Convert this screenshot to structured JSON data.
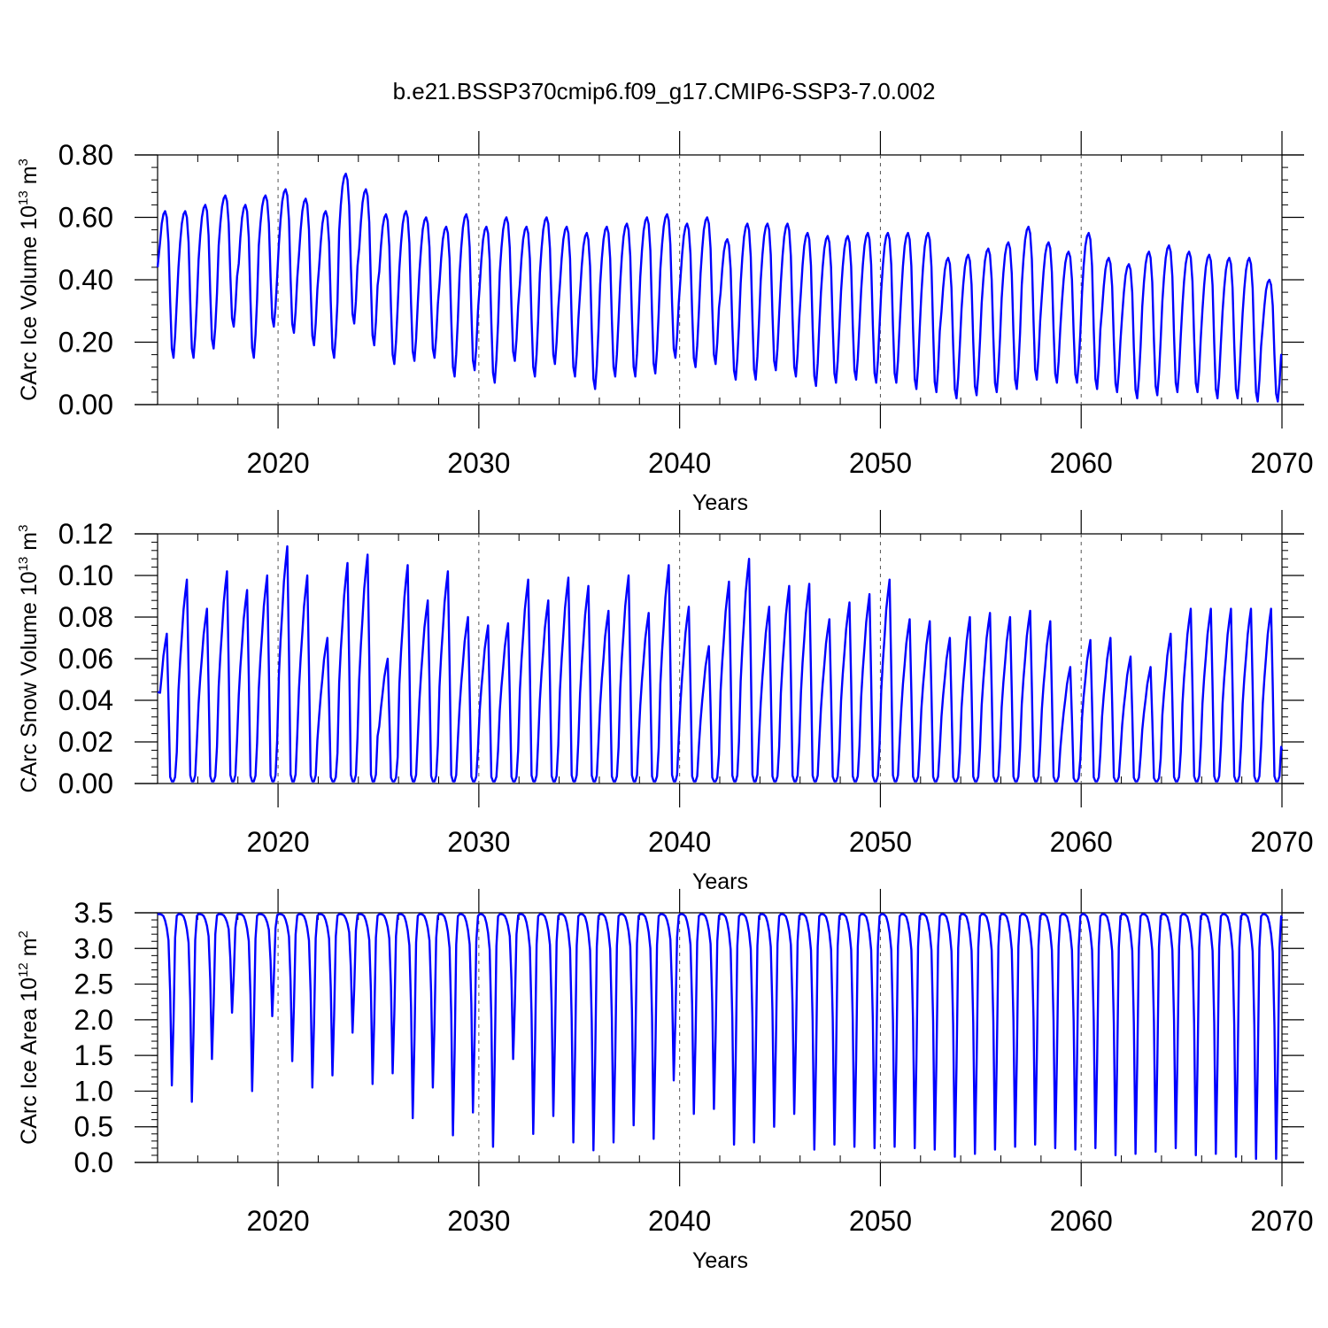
{
  "figure_title": "b.e21.BSSP370cmip6.f09_g17.CMIP6-SSP3-7.0.002",
  "colors": {
    "series": "#0000ff",
    "axes": "#000000",
    "refline": "#555555"
  },
  "chart_data": [
    {
      "type": "line",
      "ylabel": {
        "main": "CArc Ice Volume 10",
        "exp": "13",
        "unit": " m",
        "unit_exp": "3"
      },
      "xlabel": "Years",
      "xlim": [
        2014.0,
        2070.0
      ],
      "ylim": [
        0.0,
        0.8
      ],
      "x_ticks": [
        2020,
        2030,
        2040,
        2050,
        2060,
        2070
      ],
      "y_ticks": [
        "0.00",
        "0.20",
        "0.40",
        "0.60",
        "0.80"
      ],
      "y_minor_step": 0.04,
      "vertical_reference_lines": [
        2020,
        2030,
        2040,
        2050,
        2060
      ],
      "grid": false,
      "start_year": 2014,
      "series": [
        {
          "seasonal_pattern": [
            0.44,
            0.52,
            0.58,
            0.61,
            0.62,
            0.6,
            0.52,
            0.33,
            0.18,
            0.15,
            0.22,
            0.33
          ],
          "annual_max": [
            0.62,
            0.62,
            0.64,
            0.67,
            0.64,
            0.67,
            0.69,
            0.66,
            0.62,
            0.74,
            0.69,
            0.61,
            0.62,
            0.6,
            0.57,
            0.61,
            0.57,
            0.6,
            0.57,
            0.6,
            0.57,
            0.55,
            0.57,
            0.58,
            0.6,
            0.61,
            0.58,
            0.6,
            0.53,
            0.58,
            0.58,
            0.58,
            0.55,
            0.54,
            0.54,
            0.55,
            0.55,
            0.55,
            0.55,
            0.47,
            0.48,
            0.5,
            0.52,
            0.57,
            0.52,
            0.49,
            0.55,
            0.47,
            0.45,
            0.49,
            0.51,
            0.49,
            0.48,
            0.47,
            0.47,
            0.4
          ],
          "annual_min": [
            0.15,
            0.15,
            0.18,
            0.25,
            0.15,
            0.25,
            0.23,
            0.19,
            0.15,
            0.26,
            0.19,
            0.13,
            0.14,
            0.15,
            0.09,
            0.11,
            0.07,
            0.14,
            0.09,
            0.13,
            0.09,
            0.05,
            0.09,
            0.09,
            0.1,
            0.15,
            0.12,
            0.13,
            0.08,
            0.08,
            0.11,
            0.09,
            0.06,
            0.07,
            0.08,
            0.07,
            0.07,
            0.05,
            0.04,
            0.02,
            0.03,
            0.04,
            0.05,
            0.08,
            0.07,
            0.07,
            0.05,
            0.04,
            0.02,
            0.03,
            0.04,
            0.04,
            0.02,
            0.02,
            0.01,
            0.01
          ],
          "final_value": 0.16
        }
      ]
    },
    {
      "type": "line",
      "ylabel": {
        "main": "CArc Snow Volume 10",
        "exp": "13",
        "unit": " m",
        "unit_exp": "3"
      },
      "xlabel": "Years",
      "xlim": [
        2014.0,
        2070.0
      ],
      "ylim": [
        0.0,
        0.12
      ],
      "x_ticks": [
        2020,
        2030,
        2040,
        2050,
        2060,
        2070
      ],
      "y_ticks": [
        "0.00",
        "0.02",
        "0.04",
        "0.06",
        "0.08",
        "0.10",
        "0.12"
      ],
      "y_minor_step": 0.004,
      "vertical_reference_lines": [
        2020,
        2030,
        2040,
        2050,
        2060
      ],
      "grid": false,
      "start_year": 2014,
      "series": [
        {
          "seasonal_pattern": [
            0.45,
            0.6,
            0.72,
            0.85,
            0.93,
            1.0,
            0.55,
            0.03,
            0.0,
            0.0,
            0.03,
            0.2
          ],
          "annual_max": [
            0.072,
            0.098,
            0.084,
            0.102,
            0.093,
            0.1,
            0.114,
            0.1,
            0.07,
            0.106,
            0.11,
            0.06,
            0.105,
            0.088,
            0.102,
            0.08,
            0.076,
            0.077,
            0.098,
            0.088,
            0.099,
            0.095,
            0.083,
            0.1,
            0.082,
            0.105,
            0.085,
            0.066,
            0.097,
            0.108,
            0.085,
            0.095,
            0.096,
            0.079,
            0.087,
            0.091,
            0.098,
            0.079,
            0.078,
            0.07,
            0.08,
            0.082,
            0.08,
            0.083,
            0.078,
            0.056,
            0.069,
            0.07,
            0.061,
            0.056,
            0.072,
            0.084
          ],
          "annual_min": [
            0.001
          ],
          "first_value": 0.044,
          "final_value": 0.016
        }
      ]
    },
    {
      "type": "line",
      "ylabel": {
        "main": "CArc Ice Area 10",
        "exp": "12",
        "unit": " m",
        "unit_exp": "2"
      },
      "xlabel": "Years",
      "xlim": [
        2014.0,
        2070.0
      ],
      "ylim": [
        0.0,
        3.5
      ],
      "x_ticks": [
        2020,
        2030,
        2040,
        2050,
        2060,
        2070
      ],
      "y_ticks": [
        "0.0",
        "0.5",
        "1.0",
        "1.5",
        "2.0",
        "2.5",
        "3.0",
        "3.5"
      ],
      "y_minor_step": 0.1,
      "vertical_reference_lines": [
        2020,
        2030,
        2040,
        2050,
        2060
      ],
      "grid": false,
      "start_year": 2014,
      "series": [
        {
          "seasonal_pattern": [
            3.48,
            3.48,
            3.47,
            3.44,
            3.35,
            3.2,
            2.95,
            1.9,
            0.0,
            1.3,
            3.0,
            3.45
          ],
          "annual_min": [
            1.08,
            0.85,
            1.45,
            2.1,
            1.0,
            2.05,
            1.42,
            1.05,
            1.22,
            1.82,
            1.1,
            1.25,
            0.62,
            1.05,
            0.38,
            0.7,
            0.22,
            1.45,
            0.4,
            0.65,
            0.28,
            0.17,
            0.28,
            0.52,
            0.33,
            1.15,
            0.68,
            0.75,
            0.25,
            0.28,
            0.5,
            0.68,
            0.18,
            0.25,
            0.22,
            0.2,
            0.22,
            0.2,
            0.18,
            0.08,
            0.12,
            0.18,
            0.22,
            0.25,
            0.2,
            0.18,
            0.2,
            0.1,
            0.12,
            0.15,
            0.2,
            0.1,
            0.12,
            0.08,
            0.05,
            0.05
          ],
          "annual_max": [
            3.48
          ],
          "final_value": 3.42
        }
      ]
    }
  ]
}
